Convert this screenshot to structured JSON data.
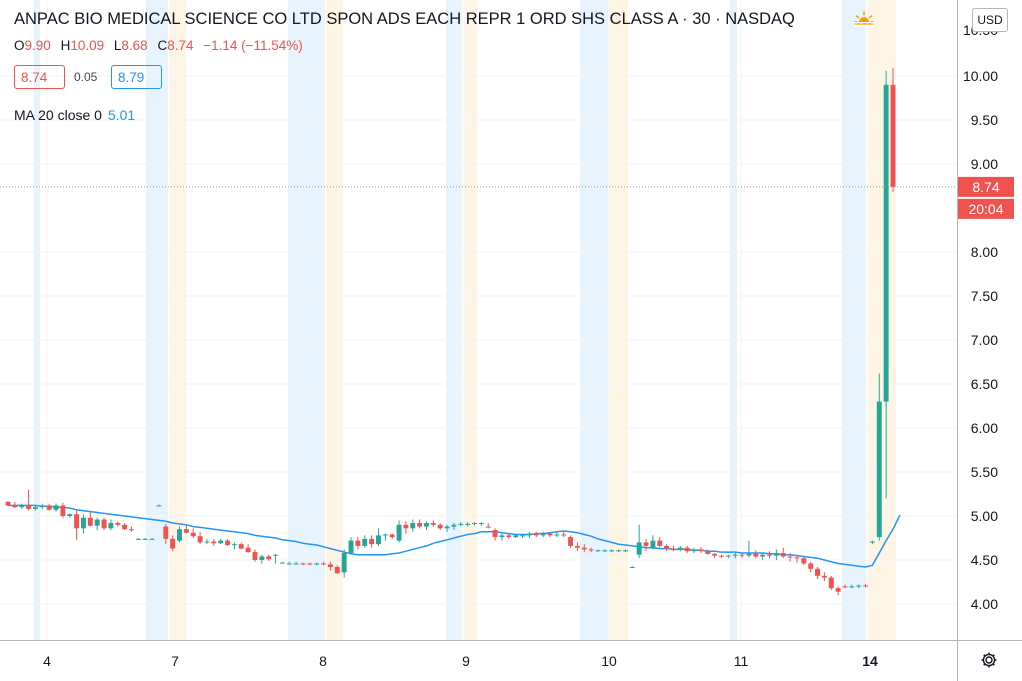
{
  "header": {
    "symbol": "ANPAC BIO MEDICAL SCIENCE CO LTD SPON ADS EACH REPR 1 ORD SHS CLASS A",
    "interval": "30",
    "exchange": "NASDAQ",
    "title_full": "ANPAC BIO MEDICAL SCIENCE CO LTD SPON ADS EACH REPR 1 ORD SHS CLASS A · 30 · NASDAQ",
    "ohlc": {
      "o_label": "O",
      "o": "9.90",
      "h_label": "H",
      "h": "10.09",
      "l_label": "L",
      "l": "8.68",
      "c_label": "C",
      "c": "8.74",
      "chg": "−1.14 (−11.54%)"
    },
    "bid": "8.74",
    "spread": "0.05",
    "ask": "8.79",
    "ma_label": "MA 20 close 0",
    "ma_value": "5.01",
    "currency": "USD"
  },
  "colors": {
    "up": "#26a69a",
    "down": "#ef5350",
    "ma": "#2196f3",
    "grid": "#f0f3fa",
    "text": "#131722",
    "premarket": "#e3f2fd",
    "afterhours": "#fff3e0"
  },
  "icons": [
    "sun-icon",
    "gear-icon"
  ],
  "chart_data": {
    "type": "candlestick",
    "title": "ANPAC BIO MEDICAL SCIENCE CO LTD SPON ADS EACH REPR 1 ORD SHS CLASS A · 30 · NASDAQ",
    "interval_minutes": 30,
    "y_ticks": [
      "4.00",
      "4.50",
      "5.00",
      "5.50",
      "6.00",
      "6.50",
      "7.00",
      "7.50",
      "8.00",
      "9.00",
      "9.50",
      "10.00"
    ],
    "ylim": [
      3.6,
      10.35
    ],
    "x_ticks": [
      "4",
      "7",
      "8",
      "9",
      "10",
      "11",
      "14"
    ],
    "last_price_label": "8.74",
    "countdown_label": "20:04",
    "series": [
      {
        "name": "Price",
        "kind": "ohlc",
        "bars": [
          [
            5.16,
            5.17,
            5.11,
            5.12
          ],
          [
            5.12,
            5.16,
            5.09,
            5.1
          ],
          [
            5.1,
            5.14,
            5.08,
            5.12
          ],
          [
            5.12,
            5.3,
            5.06,
            5.08
          ],
          [
            5.08,
            5.12,
            5.06,
            5.1
          ],
          [
            5.1,
            5.14,
            5.08,
            5.12
          ],
          [
            5.12,
            5.14,
            5.06,
            5.07
          ],
          [
            5.07,
            5.14,
            5.05,
            5.12
          ],
          [
            5.12,
            5.15,
            4.98,
            5.0
          ],
          [
            5.0,
            5.03,
            4.98,
            5.02
          ],
          [
            5.02,
            5.06,
            4.73,
            4.86
          ],
          [
            4.86,
            5.02,
            4.8,
            4.98
          ],
          [
            4.98,
            5.04,
            4.88,
            4.89
          ],
          [
            4.89,
            4.98,
            4.84,
            4.96
          ],
          [
            4.96,
            4.98,
            4.84,
            4.86
          ],
          [
            4.86,
            4.96,
            4.84,
            4.92
          ],
          [
            4.92,
            4.94,
            4.88,
            4.9
          ],
          [
            4.9,
            4.92,
            4.84,
            4.85
          ],
          [
            4.85,
            4.88,
            4.82,
            4.84
          ],
          [
            4.74,
            4.75,
            4.74,
            4.74
          ],
          [
            4.74,
            4.75,
            4.73,
            4.74
          ],
          [
            4.74,
            4.75,
            4.73,
            4.74
          ],
          [
            5.12,
            5.13,
            5.11,
            5.12
          ],
          [
            4.88,
            4.91,
            4.68,
            4.74
          ],
          [
            4.74,
            4.78,
            4.6,
            4.63
          ],
          [
            4.72,
            4.88,
            4.7,
            4.85
          ],
          [
            4.85,
            4.9,
            4.8,
            4.81
          ],
          [
            4.81,
            4.86,
            4.75,
            4.77
          ],
          [
            4.77,
            4.82,
            4.68,
            4.7
          ],
          [
            4.7,
            4.74,
            4.68,
            4.71
          ],
          [
            4.71,
            4.74,
            4.66,
            4.69
          ],
          [
            4.69,
            4.74,
            4.68,
            4.72
          ],
          [
            4.72,
            4.74,
            4.66,
            4.67
          ],
          [
            4.67,
            4.7,
            4.62,
            4.68
          ],
          [
            4.68,
            4.7,
            4.62,
            4.63
          ],
          [
            4.64,
            4.68,
            4.58,
            4.59
          ],
          [
            4.59,
            4.62,
            4.48,
            4.5
          ],
          [
            4.5,
            4.56,
            4.46,
            4.54
          ],
          [
            4.54,
            4.56,
            4.49,
            4.51
          ],
          [
            4.55,
            4.57,
            4.46,
            4.56
          ],
          [
            4.47,
            4.48,
            4.46,
            4.47
          ],
          [
            4.46,
            4.48,
            4.45,
            4.46
          ],
          [
            4.46,
            4.48,
            4.45,
            4.46
          ],
          [
            4.46,
            4.47,
            4.44,
            4.45
          ],
          [
            4.46,
            4.47,
            4.44,
            4.45
          ],
          [
            4.45,
            4.47,
            4.44,
            4.46
          ],
          [
            4.46,
            4.48,
            4.44,
            4.45
          ],
          [
            4.45,
            4.48,
            4.38,
            4.42
          ],
          [
            4.42,
            4.44,
            4.34,
            4.35
          ],
          [
            4.36,
            4.62,
            4.3,
            4.58
          ],
          [
            4.58,
            4.76,
            4.56,
            4.72
          ],
          [
            4.72,
            4.76,
            4.62,
            4.66
          ],
          [
            4.66,
            4.78,
            4.64,
            4.74
          ],
          [
            4.74,
            4.78,
            4.64,
            4.68
          ],
          [
            4.68,
            4.86,
            4.66,
            4.78
          ],
          [
            4.78,
            4.8,
            4.72,
            4.79
          ],
          [
            4.79,
            4.8,
            4.74,
            4.76
          ],
          [
            4.72,
            4.95,
            4.7,
            4.9
          ],
          [
            4.9,
            4.94,
            4.8,
            4.86
          ],
          [
            4.86,
            4.96,
            4.82,
            4.92
          ],
          [
            4.92,
            4.96,
            4.86,
            4.88
          ],
          [
            4.88,
            4.94,
            4.84,
            4.92
          ],
          [
            4.92,
            4.95,
            4.88,
            4.9
          ],
          [
            4.9,
            4.92,
            4.84,
            4.86
          ],
          [
            4.86,
            4.9,
            4.82,
            4.88
          ],
          [
            4.88,
            4.92,
            4.84,
            4.9
          ],
          [
            4.9,
            4.93,
            4.88,
            4.91
          ],
          [
            4.91,
            4.93,
            4.88,
            4.91
          ],
          [
            4.91,
            4.93,
            4.89,
            4.92
          ],
          [
            4.91,
            4.93,
            4.89,
            4.92
          ],
          [
            4.88,
            4.92,
            4.86,
            4.87
          ],
          [
            4.84,
            4.86,
            4.72,
            4.76
          ],
          [
            4.76,
            4.8,
            4.72,
            4.78
          ],
          [
            4.78,
            4.8,
            4.74,
            4.76
          ],
          [
            4.76,
            4.8,
            4.75,
            4.78
          ],
          [
            4.78,
            4.8,
            4.75,
            4.78
          ],
          [
            4.78,
            4.82,
            4.75,
            4.8
          ],
          [
            4.8,
            4.82,
            4.76,
            4.78
          ],
          [
            4.78,
            4.82,
            4.76,
            4.8
          ],
          [
            4.8,
            4.82,
            4.76,
            4.78
          ],
          [
            4.78,
            4.82,
            4.76,
            4.79
          ],
          [
            4.79,
            4.82,
            4.76,
            4.78
          ],
          [
            4.76,
            4.78,
            4.64,
            4.66
          ],
          [
            4.66,
            4.7,
            4.6,
            4.64
          ],
          [
            4.64,
            4.68,
            4.59,
            4.62
          ],
          [
            4.62,
            4.64,
            4.59,
            4.61
          ],
          [
            4.61,
            4.62,
            4.59,
            4.61
          ],
          [
            4.61,
            4.62,
            4.59,
            4.61
          ],
          [
            4.61,
            4.62,
            4.59,
            4.61
          ],
          [
            4.61,
            4.62,
            4.59,
            4.61
          ],
          [
            4.61,
            4.62,
            4.59,
            4.61
          ],
          [
            4.42,
            4.43,
            4.41,
            4.42
          ],
          [
            4.56,
            4.9,
            4.52,
            4.7
          ],
          [
            4.7,
            4.74,
            4.6,
            4.66
          ],
          [
            4.64,
            4.78,
            4.62,
            4.72
          ],
          [
            4.72,
            4.76,
            4.64,
            4.66
          ],
          [
            4.66,
            4.68,
            4.6,
            4.63
          ],
          [
            4.63,
            4.66,
            4.6,
            4.62
          ],
          [
            4.62,
            4.66,
            4.6,
            4.64
          ],
          [
            4.64,
            4.66,
            4.58,
            4.6
          ],
          [
            4.6,
            4.64,
            4.58,
            4.62
          ],
          [
            4.62,
            4.65,
            4.58,
            4.6
          ],
          [
            4.6,
            4.62,
            4.56,
            4.57
          ],
          [
            4.57,
            4.58,
            4.52,
            4.55
          ],
          [
            4.55,
            4.56,
            4.52,
            4.54
          ],
          [
            4.54,
            4.56,
            4.52,
            4.55
          ],
          [
            4.55,
            4.58,
            4.52,
            4.56
          ],
          [
            4.56,
            4.58,
            4.52,
            4.55
          ],
          [
            4.55,
            4.72,
            4.53,
            4.57
          ],
          [
            4.57,
            4.61,
            4.52,
            4.54
          ],
          [
            4.54,
            4.58,
            4.5,
            4.56
          ],
          [
            4.56,
            4.6,
            4.52,
            4.55
          ],
          [
            4.55,
            4.62,
            4.5,
            4.58
          ],
          [
            4.58,
            4.64,
            4.52,
            4.54
          ],
          [
            4.54,
            4.58,
            4.48,
            4.53
          ],
          [
            4.53,
            4.56,
            4.47,
            4.52
          ],
          [
            4.52,
            4.54,
            4.44,
            4.46
          ],
          [
            4.46,
            4.48,
            4.36,
            4.4
          ],
          [
            4.4,
            4.42,
            4.28,
            4.32
          ],
          [
            4.32,
            4.36,
            4.26,
            4.3
          ],
          [
            4.3,
            4.32,
            4.16,
            4.18
          ],
          [
            4.18,
            4.2,
            4.1,
            4.14
          ],
          [
            4.2,
            4.22,
            4.18,
            4.19
          ],
          [
            4.19,
            4.22,
            4.18,
            4.2
          ],
          [
            4.2,
            4.22,
            4.18,
            4.21
          ],
          [
            4.21,
            4.23,
            4.19,
            4.2
          ],
          [
            4.7,
            4.72,
            4.68,
            4.71
          ],
          [
            4.76,
            6.62,
            4.72,
            6.3
          ],
          [
            6.3,
            10.06,
            5.2,
            9.9
          ],
          [
            9.9,
            10.09,
            8.68,
            8.74
          ]
        ]
      },
      {
        "name": "MA 20 close 0",
        "kind": "line",
        "values": [
          5.12,
          5.12,
          5.12,
          5.12,
          5.12,
          5.11,
          5.11,
          5.1,
          5.1,
          5.09,
          5.07,
          5.06,
          5.05,
          5.04,
          5.03,
          5.02,
          5.01,
          5.0,
          4.99,
          4.98,
          4.97,
          4.96,
          4.95,
          4.94,
          4.92,
          4.91,
          4.9,
          4.88,
          4.87,
          4.86,
          4.85,
          4.84,
          4.83,
          4.82,
          4.81,
          4.8,
          4.78,
          4.77,
          4.76,
          4.75,
          4.73,
          4.72,
          4.71,
          4.69,
          4.68,
          4.67,
          4.65,
          4.63,
          4.61,
          4.59,
          4.57,
          4.56,
          4.56,
          4.56,
          4.56,
          4.56,
          4.57,
          4.58,
          4.6,
          4.62,
          4.64,
          4.66,
          4.69,
          4.71,
          4.73,
          4.75,
          4.77,
          4.79,
          4.8,
          4.82,
          4.82,
          4.82,
          4.81,
          4.8,
          4.79,
          4.79,
          4.79,
          4.8,
          4.8,
          4.81,
          4.82,
          4.83,
          4.82,
          4.81,
          4.79,
          4.77,
          4.74,
          4.72,
          4.7,
          4.68,
          4.67,
          4.66,
          4.65,
          4.64,
          4.64,
          4.63,
          4.63,
          4.62,
          4.62,
          4.62,
          4.61,
          4.61,
          4.6,
          4.6,
          4.59,
          4.59,
          4.59,
          4.58,
          4.58,
          4.58,
          4.58,
          4.57,
          4.57,
          4.56,
          4.56,
          4.55,
          4.54,
          4.53,
          4.52,
          4.5,
          4.48,
          4.46,
          4.45,
          4.44,
          4.43,
          4.42,
          4.44,
          4.58,
          4.72,
          4.85,
          5.01
        ]
      }
    ]
  }
}
